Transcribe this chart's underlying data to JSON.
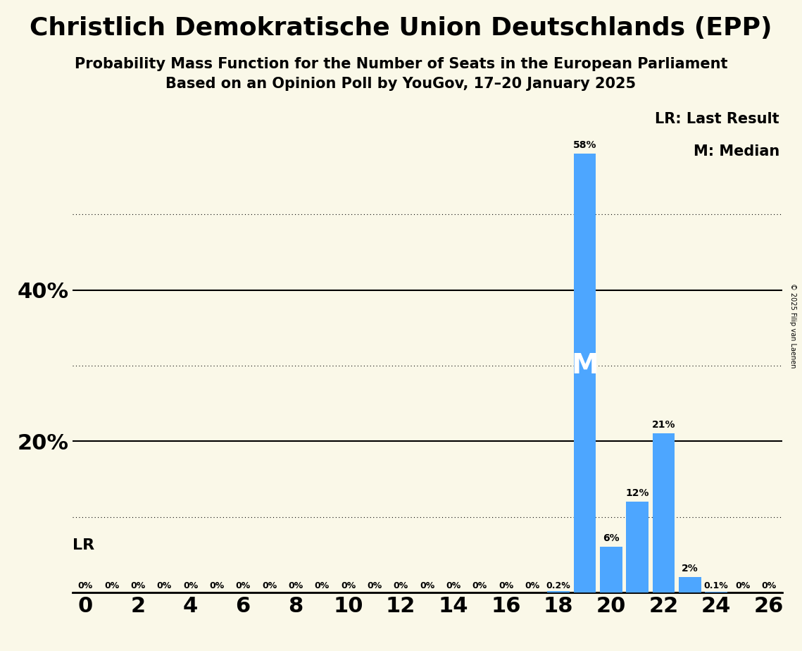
{
  "title": "Christlich Demokratische Union Deutschlands (EPP)",
  "subtitle1": "Probability Mass Function for the Number of Seats in the European Parliament",
  "subtitle2": "Based on an Opinion Poll by YouGov, 17–20 January 2025",
  "copyright": "© 2025 Filip van Laenen",
  "background_color": "#faf8e8",
  "bar_color": "#4da6ff",
  "seats": [
    0,
    1,
    2,
    3,
    4,
    5,
    6,
    7,
    8,
    9,
    10,
    11,
    12,
    13,
    14,
    15,
    16,
    17,
    18,
    19,
    20,
    21,
    22,
    23,
    24,
    25,
    26
  ],
  "probabilities": [
    0.0,
    0.0,
    0.0,
    0.0,
    0.0,
    0.0,
    0.0,
    0.0,
    0.0,
    0.0,
    0.0,
    0.0,
    0.0,
    0.0,
    0.0,
    0.0,
    0.0,
    0.0,
    0.002,
    0.58,
    0.06,
    0.12,
    0.21,
    0.02,
    0.001,
    0.0,
    0.0
  ],
  "label_map": {
    "0": "0%",
    "1": "0%",
    "2": "0%",
    "3": "0%",
    "4": "0%",
    "5": "0%",
    "6": "0%",
    "7": "0%",
    "8": "0%",
    "9": "0%",
    "10": "0%",
    "11": "0%",
    "12": "0%",
    "13": "0%",
    "14": "0%",
    "15": "0%",
    "16": "0%",
    "17": "0%",
    "18": "0.2%",
    "19": "58%",
    "20": "6%",
    "21": "12%",
    "22": "21%",
    "23": "2%",
    "24": "0.1%",
    "25": "0%",
    "26": "0%"
  },
  "median_seat": 19,
  "lr_seat": 17,
  "ylim": [
    0,
    0.65
  ],
  "solid_yticks": [
    0.0,
    0.2,
    0.4
  ],
  "dotted_yticks": [
    0.1,
    0.3,
    0.5
  ],
  "xlim": [
    -0.5,
    26.5
  ],
  "xticks": [
    0,
    2,
    4,
    6,
    8,
    10,
    12,
    14,
    16,
    18,
    20,
    22,
    24,
    26
  ],
  "legend_lr": "LR: Last Result",
  "legend_m": "M: Median",
  "bar_width": 0.85,
  "lr_line_x": 17
}
